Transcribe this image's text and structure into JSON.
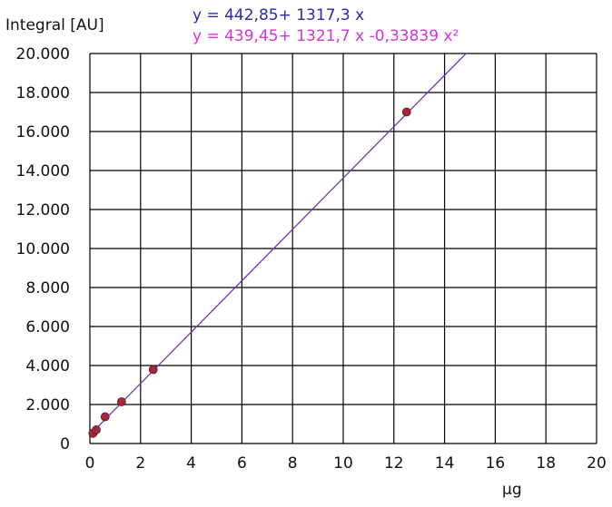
{
  "chart_data": {
    "type": "scatter",
    "title": "",
    "ylabel": "Integral [AU]",
    "xlabel": "µg",
    "xlim": [
      0,
      20
    ],
    "ylim": [
      0,
      20000
    ],
    "x_ticks": [
      0,
      2,
      4,
      6,
      8,
      10,
      12,
      14,
      16,
      18,
      20
    ],
    "y_ticks": [
      0,
      2000,
      4000,
      6000,
      8000,
      10000,
      12000,
      14000,
      16000,
      18000,
      20000
    ],
    "x_tick_labels": [
      "0",
      "2",
      "4",
      "6",
      "8",
      "10",
      "12",
      "14",
      "16",
      "18",
      "20"
    ],
    "y_tick_labels": [
      "0",
      "2.000",
      "4.000",
      "6.000",
      "8.000",
      "10.000",
      "12.000",
      "14.000",
      "16.000",
      "18.000",
      "20.000"
    ],
    "grid": true,
    "points": {
      "x": [
        0.12,
        0.25,
        0.6,
        1.25,
        2.5,
        12.5
      ],
      "y": [
        520,
        700,
        1370,
        2140,
        3790,
        17000
      ]
    },
    "equations": [
      {
        "text": "y = 442,85+ 1317,3 x",
        "color": "#2a2aa8"
      },
      {
        "text": "y = 439,45+ 1321,7 x -0,33839 x²",
        "color": "#d633d6"
      }
    ],
    "fit_linear": {
      "intercept": 442.85,
      "slope": 1317.3,
      "x_range": [
        0,
        14.85
      ],
      "color": "#2a2aa8"
    },
    "fit_quadratic": {
      "intercept": 439.45,
      "linear": 1321.7,
      "quadratic": -0.33839,
      "x_range": [
        0,
        14.85
      ],
      "color": "#c43ac4"
    },
    "marker_color": "#a3293a",
    "grid_color": "#000000"
  }
}
